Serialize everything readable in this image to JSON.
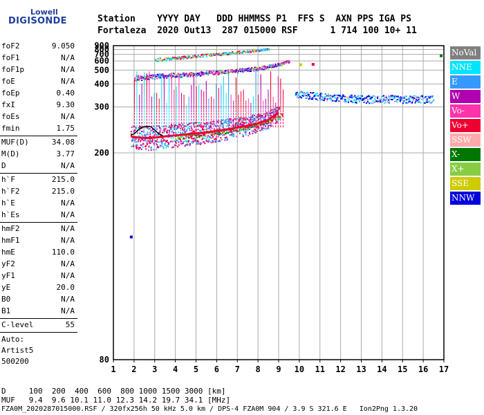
{
  "logo": {
    "line1": "Lowell",
    "line2": "DIGISONDE"
  },
  "header": {
    "row1": "Station    YYYY DAY   DDD HHMMSS P1  FFS S  AXN PPS IGA PS",
    "row2": "Fortaleza  2020 Out13  287 015000 RSF      1 714 100 10+ 11"
  },
  "params": [
    {
      "name": "foF2",
      "value": "9.050"
    },
    {
      "name": "foF1",
      "value": "N/A"
    },
    {
      "name": "foF1p",
      "value": "N/A"
    },
    {
      "name": "foE",
      "value": "N/A"
    },
    {
      "name": "foEp",
      "value": "0.40"
    },
    {
      "name": "fxI",
      "value": "9.30"
    },
    {
      "name": "foEs",
      "value": "N/A"
    },
    {
      "name": "fmin",
      "value": "1.75"
    },
    {
      "name": "MUF(D)",
      "value": "34.08"
    },
    {
      "name": "M(D)",
      "value": "3.77"
    },
    {
      "name": "D",
      "value": "N/A"
    },
    {
      "name": "h`F",
      "value": "215.0"
    },
    {
      "name": "h`F2",
      "value": "215.0"
    },
    {
      "name": "h`E",
      "value": "N/A"
    },
    {
      "name": "h`Es",
      "value": "N/A"
    },
    {
      "name": "hmF2",
      "value": "N/A"
    },
    {
      "name": "hmF1",
      "value": "N/A"
    },
    {
      "name": "hmE",
      "value": "110.0"
    },
    {
      "name": "yF2",
      "value": "N/A"
    },
    {
      "name": "yF1",
      "value": "N/A"
    },
    {
      "name": "yE",
      "value": "20.0"
    },
    {
      "name": "B0",
      "value": "N/A"
    },
    {
      "name": "B1",
      "value": "N/A"
    },
    {
      "name": "C-level",
      "value": "55"
    }
  ],
  "autoscale": {
    "label": "Auto:",
    "program": "Artist5",
    "version": "500200"
  },
  "muf_table": {
    "row1": "D     100  200  400  600  800 1000 1500 3000 [km]",
    "row2": "MUF   9.4  9.6 10.1 11.0 12.3 14.2 19.7 34.1 [MHz]"
  },
  "footer": "FZA0M_2020287015000.RSF / 320fx256h 50 kHz 5.0 km / DPS-4 FZA0M 904 / 3.9 S 321.6 E   Ion2Png 1.3.20",
  "legend": [
    {
      "label": "NoVal",
      "color": "#808080"
    },
    {
      "label": "NNE",
      "color": "#00e5ff"
    },
    {
      "label": "E",
      "color": "#3399ff"
    },
    {
      "label": "W",
      "color": "#b000b0"
    },
    {
      "label": "Vo-",
      "color": "#ff33aa"
    },
    {
      "label": "Vo+",
      "color": "#ee0033"
    },
    {
      "label": "SSW",
      "color": "#ffaaaa"
    },
    {
      "label": "X-",
      "color": "#007700"
    },
    {
      "label": "X+",
      "color": "#88cc44"
    },
    {
      "label": "SSE",
      "color": "#cccc00"
    },
    {
      "label": "NNW",
      "color": "#0000dd"
    }
  ],
  "chart_data": {
    "type": "scatter",
    "xlabel": "",
    "ylabel": "",
    "xlim": [
      1,
      17
    ],
    "ylim": [
      80,
      900
    ],
    "y_scale": "reciprocal",
    "x_ticks": [
      "1",
      "2",
      "3",
      "4",
      "5",
      "6",
      "7",
      "8",
      "9",
      "10",
      "11",
      "12",
      "13",
      "14",
      "15",
      "16",
      "17"
    ],
    "y_ticks": [
      "80",
      "200",
      "300",
      "400",
      "500",
      "600",
      "700",
      "800",
      "900"
    ],
    "traces": [
      {
        "name": "O-trace F layer",
        "x": [
          1.85,
          2.2,
          2.6,
          3.0,
          3.5,
          4.0,
          4.5,
          5.0,
          5.5,
          6.0,
          6.5,
          7.0,
          7.5,
          8.0,
          8.5,
          9.0
        ],
        "y": [
          230,
          228,
          227,
          228,
          230,
          232,
          234,
          236,
          238,
          241,
          244,
          248,
          252,
          258,
          266,
          285
        ]
      },
      {
        "name": "black scaled trace",
        "x": [
          1.85,
          2.0,
          2.2,
          2.4,
          2.6,
          2.8,
          3.0,
          3.2,
          3.4
        ],
        "y": [
          230,
          232,
          240,
          246,
          248,
          247,
          240,
          232,
          228
        ]
      },
      {
        "name": "X-trace",
        "x": [
          4.0,
          5.0,
          6.0,
          7.0,
          8.0,
          8.6,
          9.2
        ],
        "y": [
          226,
          231,
          236,
          243,
          254,
          263,
          278
        ]
      },
      {
        "name": "second hop",
        "x": [
          2.0,
          3.0,
          4.0,
          5.0,
          6.0,
          7.0,
          8.0,
          9.0,
          9.5
        ],
        "y": [
          440,
          452,
          462,
          472,
          485,
          500,
          520,
          560,
          600
        ]
      },
      {
        "name": "multi-hop",
        "x": [
          3.0,
          4.0,
          5.0,
          6.0,
          7.0,
          7.5,
          8.0,
          8.5
        ],
        "y": [
          620,
          650,
          680,
          710,
          750,
          770,
          790,
          830
        ]
      },
      {
        "name": "spread F echoes",
        "x": [
          9.8,
          10.5,
          11.0,
          12.0,
          13.0,
          14.0,
          15.0,
          16.0,
          16.5
        ],
        "y": [
          350,
          345,
          340,
          335,
          330,
          330,
          330,
          330,
          330
        ]
      }
    ],
    "extra_points": [
      {
        "x": 1.8,
        "y": 125,
        "color": "#0000dd"
      },
      {
        "x": 16.8,
        "y": 700,
        "color": "#007700"
      },
      {
        "x": 10.0,
        "y": 570,
        "color": "#cccc00"
      },
      {
        "x": 10.6,
        "y": 575,
        "color": "#ee0033"
      }
    ]
  }
}
